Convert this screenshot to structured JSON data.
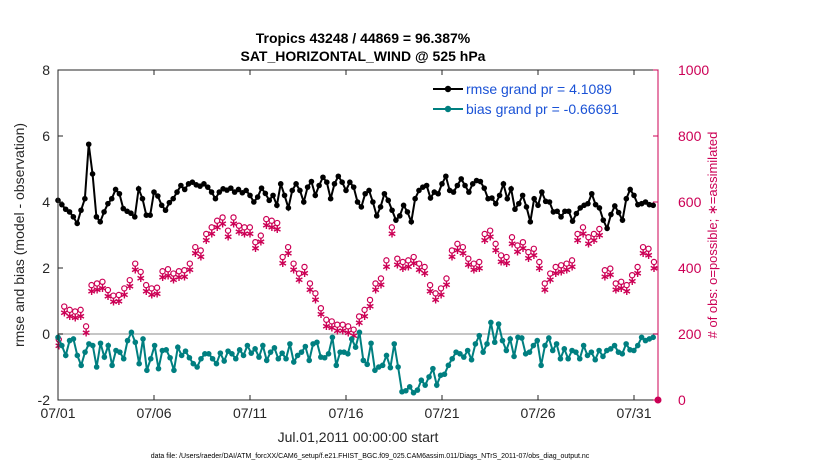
{
  "chart_data": {
    "type": "line",
    "title": "Tropics 43248 / 44869 = 96.387%",
    "subtitle": "SAT_HORIZONTAL_WIND @ 525 hPa",
    "xlabel": "Jul.01,2011 00:00:00 start",
    "ylabel": "rmse and bias (model - observation)",
    "y2label": "# of obs: o=possible; ∗=assimilated",
    "footnote": "data file: /Users/raeder/DAI/ATM_forcXX/CAM6_setup/f.e21.FHIST_BGC.f09_025.CAM6assim.011/Diags_NTrS_2011-07/obs_diag_output.nc",
    "xlim": [
      0,
      31.25
    ],
    "ylim": [
      -2,
      8
    ],
    "y2lim": [
      0,
      1000
    ],
    "x_tick_labels": [
      "07/01",
      "07/06",
      "07/11",
      "07/16",
      "07/21",
      "07/26",
      "07/31"
    ],
    "x_ticks": [
      0,
      5,
      10,
      15,
      20,
      25,
      30
    ],
    "y_ticks": [
      -2,
      0,
      2,
      4,
      6,
      8
    ],
    "y2_ticks": [
      0,
      200,
      400,
      600,
      800,
      1000
    ],
    "legend_location": "top-right",
    "series": [
      {
        "name": "rmse grand pr = 4.1089",
        "color": "#000000",
        "axis": "left",
        "values": [
          4.05,
          3.92,
          3.78,
          3.7,
          3.55,
          3.35,
          3.75,
          4.1,
          5.75,
          4.85,
          3.55,
          3.4,
          3.7,
          3.95,
          4.1,
          4.38,
          4.25,
          3.8,
          3.72,
          3.66,
          3.55,
          4.4,
          4.1,
          3.6,
          3.6,
          4.3,
          4.18,
          3.9,
          3.75,
          3.98,
          4.1,
          4.3,
          4.5,
          4.38,
          4.55,
          4.6,
          4.52,
          4.48,
          4.55,
          4.45,
          4.3,
          4.1,
          4.3,
          4.4,
          4.36,
          4.42,
          4.3,
          4.38,
          4.28,
          4.35,
          4.2,
          4.0,
          4.15,
          4.42,
          4.26,
          4.05,
          4.2,
          3.9,
          4.55,
          4.2,
          3.82,
          4.35,
          4.55,
          4.35,
          4.0,
          4.45,
          4.62,
          4.2,
          4.5,
          4.75,
          4.6,
          4.1,
          4.55,
          4.78,
          4.6,
          4.35,
          4.6,
          4.45,
          4.0,
          3.85,
          4.25,
          4.35,
          4.0,
          3.58,
          3.85,
          4.25,
          4.05,
          3.75,
          3.45,
          3.58,
          3.9,
          3.7,
          3.4,
          4.1,
          4.35,
          4.45,
          4.5,
          4.12,
          4.3,
          4.25,
          4.55,
          4.78,
          4.35,
          4.3,
          4.5,
          4.7,
          4.5,
          4.3,
          4.55,
          4.65,
          4.62,
          4.42,
          4.1,
          4.12,
          3.95,
          4.2,
          4.55,
          4.1,
          4.4,
          3.78,
          3.95,
          4.2,
          3.85,
          3.4,
          4.1,
          3.9,
          4.3,
          4.02,
          4.0,
          3.7,
          3.72,
          3.55,
          3.72,
          3.72,
          3.42,
          3.65,
          3.82,
          3.9,
          3.95,
          4.25,
          3.92,
          3.82,
          3.45,
          3.2,
          3.62,
          3.88,
          3.68,
          3.45,
          4.1,
          4.38,
          4.2,
          3.92,
          3.95,
          4.0,
          3.92,
          3.9
        ]
      },
      {
        "name": "bias grand pr = -0.66691",
        "color": "#007f80",
        "axis": "left",
        "values": [
          -0.1,
          -0.35,
          -0.65,
          -0.2,
          -0.15,
          -0.65,
          -0.95,
          -0.55,
          -0.3,
          -0.35,
          -1.0,
          -0.28,
          -0.7,
          -0.35,
          -0.95,
          -0.5,
          -0.55,
          -0.75,
          -0.2,
          0.05,
          -0.25,
          -0.9,
          -0.15,
          -1.1,
          -0.75,
          -0.35,
          -1.05,
          -0.5,
          -0.48,
          -0.72,
          -1.1,
          -0.4,
          -0.65,
          -0.52,
          -0.72,
          -0.9,
          -1.0,
          -0.75,
          -0.6,
          -0.6,
          -0.75,
          -0.9,
          -0.58,
          -0.82,
          -0.52,
          -0.6,
          -0.75,
          -0.48,
          -0.65,
          -0.35,
          -0.58,
          -0.45,
          -0.7,
          -0.35,
          -0.8,
          -0.55,
          -0.42,
          -0.75,
          -0.58,
          -0.75,
          -0.3,
          -0.85,
          -0.65,
          -0.55,
          -0.38,
          -0.8,
          -0.3,
          -0.25,
          -0.7,
          -0.72,
          -0.6,
          -0.1,
          -0.95,
          -0.55,
          -0.55,
          -0.6,
          -0.15,
          -0.4,
          0.05,
          -0.8,
          -0.92,
          -0.28,
          -1.1,
          -1.0,
          -0.95,
          -0.65,
          -1.02,
          -0.3,
          -1.0,
          -1.75,
          -1.72,
          -1.6,
          -1.78,
          -1.7,
          -1.4,
          -1.55,
          -1.3,
          -1.05,
          -1.55,
          -1.25,
          -1.22,
          -0.95,
          -0.75,
          -0.55,
          -0.6,
          -0.7,
          -0.5,
          -0.78,
          -0.3,
          -0.05,
          -0.55,
          -0.3,
          0.35,
          -0.25,
          0.3,
          -0.2,
          -0.5,
          -0.15,
          -0.68,
          -0.1,
          -0.12,
          -0.6,
          -0.55,
          -0.35,
          -0.2,
          -0.95,
          -0.35,
          -0.12,
          -0.5,
          -0.3,
          -0.75,
          -0.45,
          -0.75,
          -0.5,
          -0.55,
          -0.75,
          -0.35,
          -0.65,
          -0.55,
          -0.78,
          -0.5,
          -0.68,
          -0.5,
          -0.45,
          -0.35,
          -0.55,
          -0.6,
          -0.3,
          -0.48,
          -0.5,
          -0.35,
          -0.1,
          -0.2,
          -0.15,
          -0.1
        ]
      }
    ],
    "obs_possible_left_units": [
      -0.35,
      0.65,
      0.55,
      0.5,
      0.55,
      0.05,
      1.3,
      1.35,
      1.4,
      1.15,
      0.98,
      1.0,
      1.2,
      1.45,
      1.95,
      1.7,
      1.3,
      1.2,
      1.22,
      1.72,
      1.78,
      1.65,
      1.72,
      1.75,
      1.95,
      2.45,
      2.35,
      2.85,
      3.05,
      3.25,
      3.35,
      2.95,
      3.35,
      3.1,
      3.05,
      3.05,
      2.6,
      2.8,
      3.3,
      3.25,
      3.18,
      2.15,
      2.45,
      1.95,
      1.65,
      1.85,
      1.35,
      1.05,
      0.6,
      0.25,
      0.2,
      0.1,
      0.1,
      0.05,
      -0.05,
      0.35,
      0.55,
      0.85,
      1.35,
      1.5,
      2.05,
      3.05,
      2.1,
      2.0,
      2.05,
      2.15,
      1.95,
      1.85,
      1.3,
      1.05,
      1.2,
      1.5,
      2.35,
      2.55,
      2.45,
      2.1,
      1.95,
      2.0,
      2.85,
      2.95,
      2.55,
      2.2,
      2.15,
      2.75,
      2.5,
      2.6,
      2.3,
      2.4,
      2.0,
      1.35,
      1.65,
      1.85,
      1.9,
      1.95,
      2.05,
      2.85,
      3.05,
      2.75,
      2.85,
      3.0,
      1.75,
      1.8,
      1.35,
      1.4,
      1.3,
      1.6,
      1.85,
      2.45,
      2.4,
      2.0
    ]
  }
}
